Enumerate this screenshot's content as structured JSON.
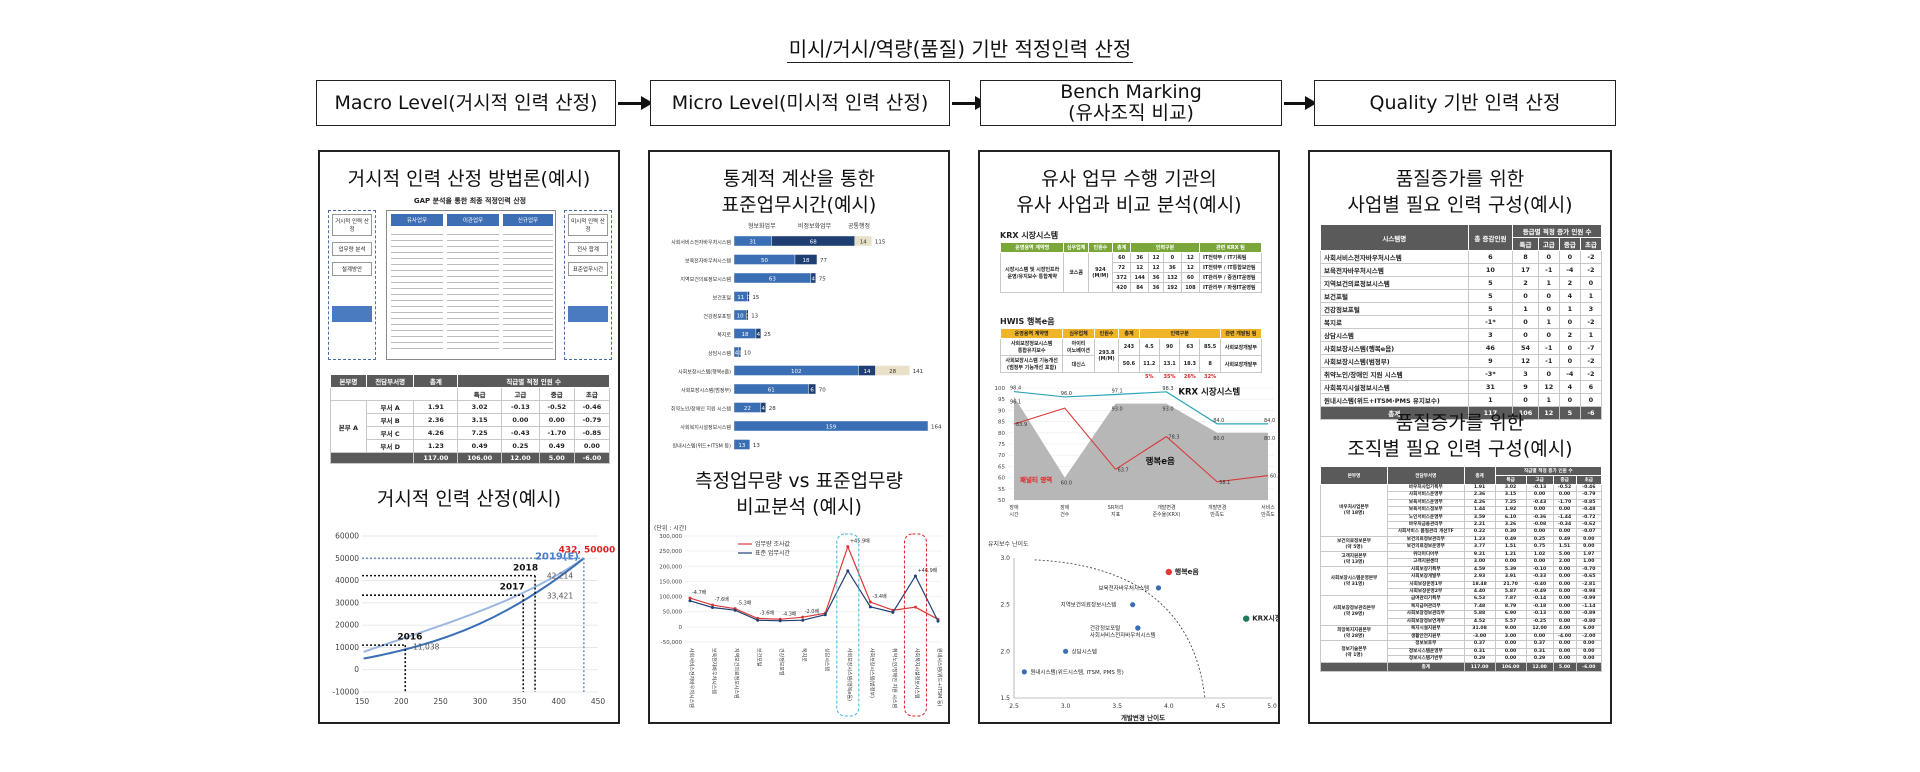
{
  "title": "미시/거시/역량(품질) 기반 적정인력 산정",
  "stages": [
    {
      "label": "Macro Level(거시적 인력 산정)"
    },
    {
      "label": "Micro Level(미시적 인력 산정)"
    },
    {
      "label": "Bench Marking\n(유사조직 비교)"
    },
    {
      "label": "Quality 기반 인력 산정"
    }
  ],
  "panels": {
    "macro": {
      "heading1": "거시적 인력 산정 방법론(예시)",
      "heading2": "거시적 인력 산정(예시)",
      "method_title": "GAP 분석을 통한 최종 적정인력 산정",
      "method_left": [
        "거시적 인력 산정",
        "업무량 분석",
        "설계방안"
      ],
      "method_cols": [
        "유사업무",
        "이관업무",
        "신규업무"
      ],
      "method_right": [
        "미시적 인력 산정",
        "전사 합계",
        "표준업무시간"
      ],
      "table_headers": [
        "본부명",
        "전담부서명",
        "총계",
        "직급별 적정 인원 수"
      ],
      "table_sub": [
        "특급",
        "고급",
        "중급",
        "초급"
      ],
      "table_rows": [
        [
          "본부 A",
          "부서 A",
          "1.91",
          "3.02",
          "-0.13",
          "-0.52",
          "-0.46"
        ],
        [
          "본부 A",
          "부서 B",
          "2.36",
          "3.15",
          "0.00",
          "0.00",
          "-0.79"
        ],
        [
          "본부 A",
          "부서 C",
          "4.26",
          "7.25",
          "-0.43",
          "-1.70",
          "-0.85"
        ],
        [
          "본부 A",
          "부서 D",
          "1.23",
          "0.49",
          "0.25",
          "0.49",
          "0.00"
        ]
      ],
      "table_total": [
        "117.00",
        "106.00",
        "12.00",
        "5.00",
        "-6.00"
      ],
      "curve_chart": {
        "xticks": [
          "150",
          "200",
          "250",
          "300",
          "350",
          "400",
          "450"
        ],
        "yticks": [
          "60000",
          "50000",
          "40000",
          "30000",
          "20000",
          "10000",
          "0",
          "-10000"
        ],
        "labels": [
          {
            "year": "2016",
            "value": "11,038"
          },
          {
            "year": "2017",
            "value": "33,421"
          },
          {
            "year": "2018",
            "value": "42,214"
          },
          {
            "year": "2019(E)",
            "value": "432, 50000"
          }
        ]
      }
    },
    "micro": {
      "heading1": "통계적 계산을 통한\n표준업무시간(예시)",
      "heading2": "측정업무량 vs 표준업무량\n비교분석 (예시)",
      "bar_legend": [
        "형보화업무",
        "비정보화업무",
        "공통행정"
      ],
      "bar_rows": [
        {
          "name": "사회서비스전자바우처시스템",
          "v": [
            "31",
            "68",
            "14"
          ],
          "total": "115"
        },
        {
          "name": "보육전자바우처시스템",
          "v": [
            "50",
            "18",
            ""
          ],
          "total": "77"
        },
        {
          "name": "지역보건의료정보시스템",
          "v": [
            "63",
            "4",
            ""
          ],
          "total": "75"
        },
        {
          "name": "보건포털",
          "v": [
            "11",
            "0",
            ""
          ],
          "total": "15"
        },
        {
          "name": "건강정보포털",
          "v": [
            "10",
            "0",
            ""
          ],
          "total": "13"
        },
        {
          "name": "복지로",
          "v": [
            "18",
            "4",
            ""
          ],
          "total": "25"
        },
        {
          "name": "상담시스템",
          "v": [
            "4",
            "1",
            ""
          ],
          "total": "10"
        },
        {
          "name": "사회보장시스템(행복e음)",
          "v": [
            "102",
            "14",
            "28"
          ],
          "total": "141"
        },
        {
          "name": "사회보장시스템(범정부)",
          "v": [
            "61",
            "6",
            ""
          ],
          "total": "70"
        },
        {
          "name": "취약노인/장애인 지원 시스템",
          "v": [
            "22",
            "4",
            ""
          ],
          "total": "28"
        },
        {
          "name": "사회복지시설정보시스템",
          "v": [
            "159",
            "",
            ""
          ],
          "total": "164"
        },
        {
          "name": "원내시스템(위드+ITSM 등)",
          "v": [
            "13",
            "",
            ""
          ],
          "total": "13"
        }
      ],
      "line_chart": {
        "unit": "(단위 : 시간)",
        "legend": [
          "업무량 조사값",
          "표준 업무시간"
        ],
        "yticks": [
          "300,000",
          "250,000",
          "200,000",
          "150,000",
          "100,000",
          "50,000",
          "0",
          "-50,000"
        ],
        "annotations": [
          "-4.7배",
          "-7.6배",
          "-5.3배",
          "-3.6배",
          "-4.3배",
          "-2.0배",
          "+45.9배",
          "-3.4배",
          "+46.9배"
        ],
        "categories": [
          "사회서비스전자바우처시스템",
          "보육전자바우처시스템",
          "지역보건의료정보시스템",
          "보건포털",
          "건강정보포털",
          "복지로",
          "상담시스템",
          "사회보장시스템(행복e음)",
          "사회보장시스템(범정부)",
          "취약노인/장애인 지원 시스템",
          "사회복지시설정보시스템",
          "원내시스템(위드+ITSM 등)"
        ]
      }
    },
    "bench": {
      "heading1": "유사 업무 수행 기관의\n유사 사업과 비교 분석(예시)",
      "krx_title": "KRX 시장시스템",
      "hwis_title": "HWIS 행복e음",
      "krx_headers": [
        "운영용역 계약명",
        "심우업체",
        "인원수",
        "총계",
        "인력구분",
        "관련 KRX 팀"
      ],
      "hwis_headers": [
        "운영용역 계약명",
        "심우업체",
        "인원수",
        "총계",
        "인력구분",
        "관련 개발팀 팀"
      ],
      "hwis_pct": [
        "5%",
        "35%",
        "26%",
        "32%"
      ],
      "line": {
        "krx_label": "KRX 시장시스템",
        "hwis_label": "행복e음",
        "penalty": "패널티 영역",
        "yticks": [
          "100",
          "95",
          "90",
          "85",
          "80",
          "75",
          "70",
          "65",
          "60",
          "55",
          "50"
        ],
        "xcats": [
          "장애 시간",
          "장애 건수",
          "SR처리 지표",
          "개발변경 준수율(KRX)",
          "개발변경 만족도",
          "서비스 만족도"
        ],
        "krx_values": [
          "98.4",
          "96.0",
          "97.1",
          "98.3",
          "84.0",
          "84.0"
        ],
        "hwis_values": [
          "96.1",
          "60.0",
          "93.0",
          "93.0",
          "80.0",
          "80.0"
        ],
        "red_values": [
          "83.9",
          "63.7",
          "78.3",
          "58.1",
          "60.9"
        ]
      },
      "scatter": {
        "ylabel": "유지보수 난이도",
        "xlabel": "개발변경 난이도",
        "xticks": [
          "2.5",
          "3.0",
          "3.5",
          "4.0",
          "4.5",
          "5.0"
        ],
        "yticks": [
          "3.0",
          "2.5",
          "2.0",
          "1.5"
        ],
        "points": [
          {
            "name": "행복e음",
            "color": "#e53935"
          },
          {
            "name": "KRX시장시스템",
            "color": "#1b7a5a"
          },
          {
            "name": "보육전자바우처시스템",
            "color": "#3b6fb5"
          },
          {
            "name": "지역보건의료정보시스템",
            "color": "#3b6fb5"
          },
          {
            "name": "건강정보포털",
            "color": "#3b6fb5"
          },
          {
            "name": "사회서비스전자바우처시스템",
            "color": "#3b6fb5"
          },
          {
            "name": "상담시스템",
            "color": "#3b6fb5"
          },
          {
            "name": "원내시스템(위드시스템, ITSM, PMS 등)",
            "color": "#3b6fb5"
          }
        ]
      }
    },
    "quality": {
      "heading1": "품질증가를 위한\n사업별 필요 인력 구성(예시)",
      "heading2": "품질증가를 위한\n조직별 필요 인력 구성(예시)",
      "t1_headers": [
        "시스템명",
        "총 증감인원",
        "등급별 적정 증가 인원 수"
      ],
      "t1_sub": [
        "특급",
        "고급",
        "중급",
        "초급"
      ],
      "t1_rows": [
        [
          "사회서비스전자바우처시스템",
          "6",
          "8",
          "0",
          "0",
          "-2"
        ],
        [
          "보육전자바우처시스템",
          "10",
          "17",
          "-1",
          "-4",
          "-2"
        ],
        [
          "지역보건의료정보시스템",
          "5",
          "2",
          "1",
          "2",
          "0"
        ],
        [
          "보건포털",
          "5",
          "0",
          "0",
          "4",
          "1"
        ],
        [
          "건강정보포털",
          "5",
          "1",
          "0",
          "1",
          "3"
        ],
        [
          "복지로",
          "-1*",
          "0",
          "1",
          "0",
          "-2"
        ],
        [
          "상담시스템",
          "3",
          "0",
          "0",
          "2",
          "1"
        ],
        [
          "사회보장시스템(행복e음)",
          "46",
          "54",
          "-1",
          "0",
          "-7"
        ],
        [
          "사회보장시스템(범정부)",
          "9",
          "12",
          "-1",
          "0",
          "-2"
        ],
        [
          "취약노인/장애인 지원 시스템",
          "-3*",
          "3",
          "0",
          "-4",
          "-2"
        ],
        [
          "사회복지시설정보시스템",
          "31",
          "9",
          "12",
          "4",
          "6"
        ],
        [
          "원내시스템(위드+ITSM·PMS 유지보수)",
          "1",
          "0",
          "1",
          "0",
          "0"
        ]
      ],
      "t1_total": [
        "총계",
        "117",
        "106",
        "12",
        "5",
        "-6"
      ],
      "t2_headers": [
        "본부명",
        "전담부서명",
        "총계",
        "직급별 적정 증가 인원 수"
      ],
      "t2_sub": [
        "특급",
        "고급",
        "중급",
        "초급"
      ],
      "t2_groups": [
        {
          "name": "바우처사업본부\n(약 18명)",
          "rows": [
            [
              "바우처사업기획부",
              "1.91",
              "3.02",
              "-0.13",
              "-0.52",
              "-0.46"
            ],
            [
              "사회서비스운영부",
              "2.36",
              "3.15",
              "0.00",
              "0.00",
              "-0.79"
            ],
            [
              "보육서비스운영부",
              "4.26",
              "7.25",
              "-0.43",
              "-1.70",
              "-0.85"
            ],
            [
              "보육서비스정보부",
              "1.44",
              "1.92",
              "0.00",
              "0.00",
              "-0.48"
            ],
            [
              "노인서비스운영부",
              "3.59",
              "6.10",
              "-0.36",
              "-1.44",
              "-0.72"
            ],
            [
              "바우처금융관리부",
              "2.21",
              "3.26",
              "-0.08",
              "-0.34",
              "-0.62"
            ],
            [
              "사회서비스 품질관리 개선TF",
              "0.22",
              "0.30",
              "0.00",
              "0.00",
              "-0.07"
            ]
          ]
        },
        {
          "name": "보건의료정보본부\n(약 5명)",
          "rows": [
            [
              "보건의료정보관리부",
              "1.23",
              "0.49",
              "0.25",
              "0.49",
              "0.00"
            ],
            [
              "보건의료정보운영부",
              "3.77",
              "1.51",
              "0.75",
              "1.51",
              "0.00"
            ]
          ]
        },
        {
          "name": "고객지원본부\n(약 13명)",
          "rows": [
            [
              "위더미디어부",
              "9.21",
              "1.21",
              "1.02",
              "5.00",
              "1.97"
            ],
            [
              "고객지원센터",
              "3.00",
              "0.00",
              "0.00",
              "2.00",
              "1.00"
            ]
          ]
        },
        {
          "name": "사회보장시스템운영본부\n(약 31명)",
          "rows": [
            [
              "사회보장기획부",
              "4.59",
              "5.39",
              "-0.10",
              "0.00",
              "-0.70"
            ],
            [
              "사회보장개발부",
              "2.93",
              "3.91",
              "-0.33",
              "0.00",
              "-0.65"
            ],
            [
              "사회보장운영1부",
              "18.48",
              "21.70",
              "-0.40",
              "0.00",
              "-2.81"
            ],
            [
              "사회보장운영2부",
              "4.40",
              "5.87",
              "-0.49",
              "0.00",
              "-0.98"
            ]
          ]
        },
        {
          "name": "사회보장정보관리본부\n(약 29명)",
          "rows": [
            [
              "급여관리기획부",
              "6.53",
              "7.87",
              "-0.14",
              "0.00",
              "-0.99"
            ],
            [
              "복지급여관리부",
              "7.48",
              "8.79",
              "-0.18",
              "0.00",
              "-1.14"
            ],
            [
              "사회보장정보관리부",
              "5.88",
              "6.90",
              "-0.13",
              "0.00",
              "-0.89"
            ],
            [
              "사회보장정보연계부",
              "4.52",
              "5.57",
              "-0.25",
              "0.00",
              "-0.80"
            ]
          ]
        },
        {
          "name": "희망복지지원본부\n(약 28명)",
          "rows": [
            [
              "복지시설지원부",
              "31.08",
              "9.00",
              "12.00",
              "4.00",
              "6.00"
            ],
            [
              "생활안전지원부",
              "-3.00",
              "3.00",
              "0.00",
              "-4.00",
              "-2.00"
            ]
          ]
        },
        {
          "name": "정보기술본부\n(약 1명)",
          "rows": [
            [
              "정보보호부",
              "0.37",
              "0.00",
              "0.37",
              "0.00",
              "0.00"
            ],
            [
              "정보시스템운영부",
              "0.31",
              "0.00",
              "0.31",
              "0.00",
              "0.00"
            ],
            [
              "정보시스템기반부",
              "0.29",
              "0.00",
              "0.29",
              "0.00",
              "0.00"
            ]
          ]
        }
      ],
      "t2_total": [
        "총계",
        "117.00",
        "106.00",
        "12.00",
        "5.00",
        "-6.00"
      ]
    }
  }
}
